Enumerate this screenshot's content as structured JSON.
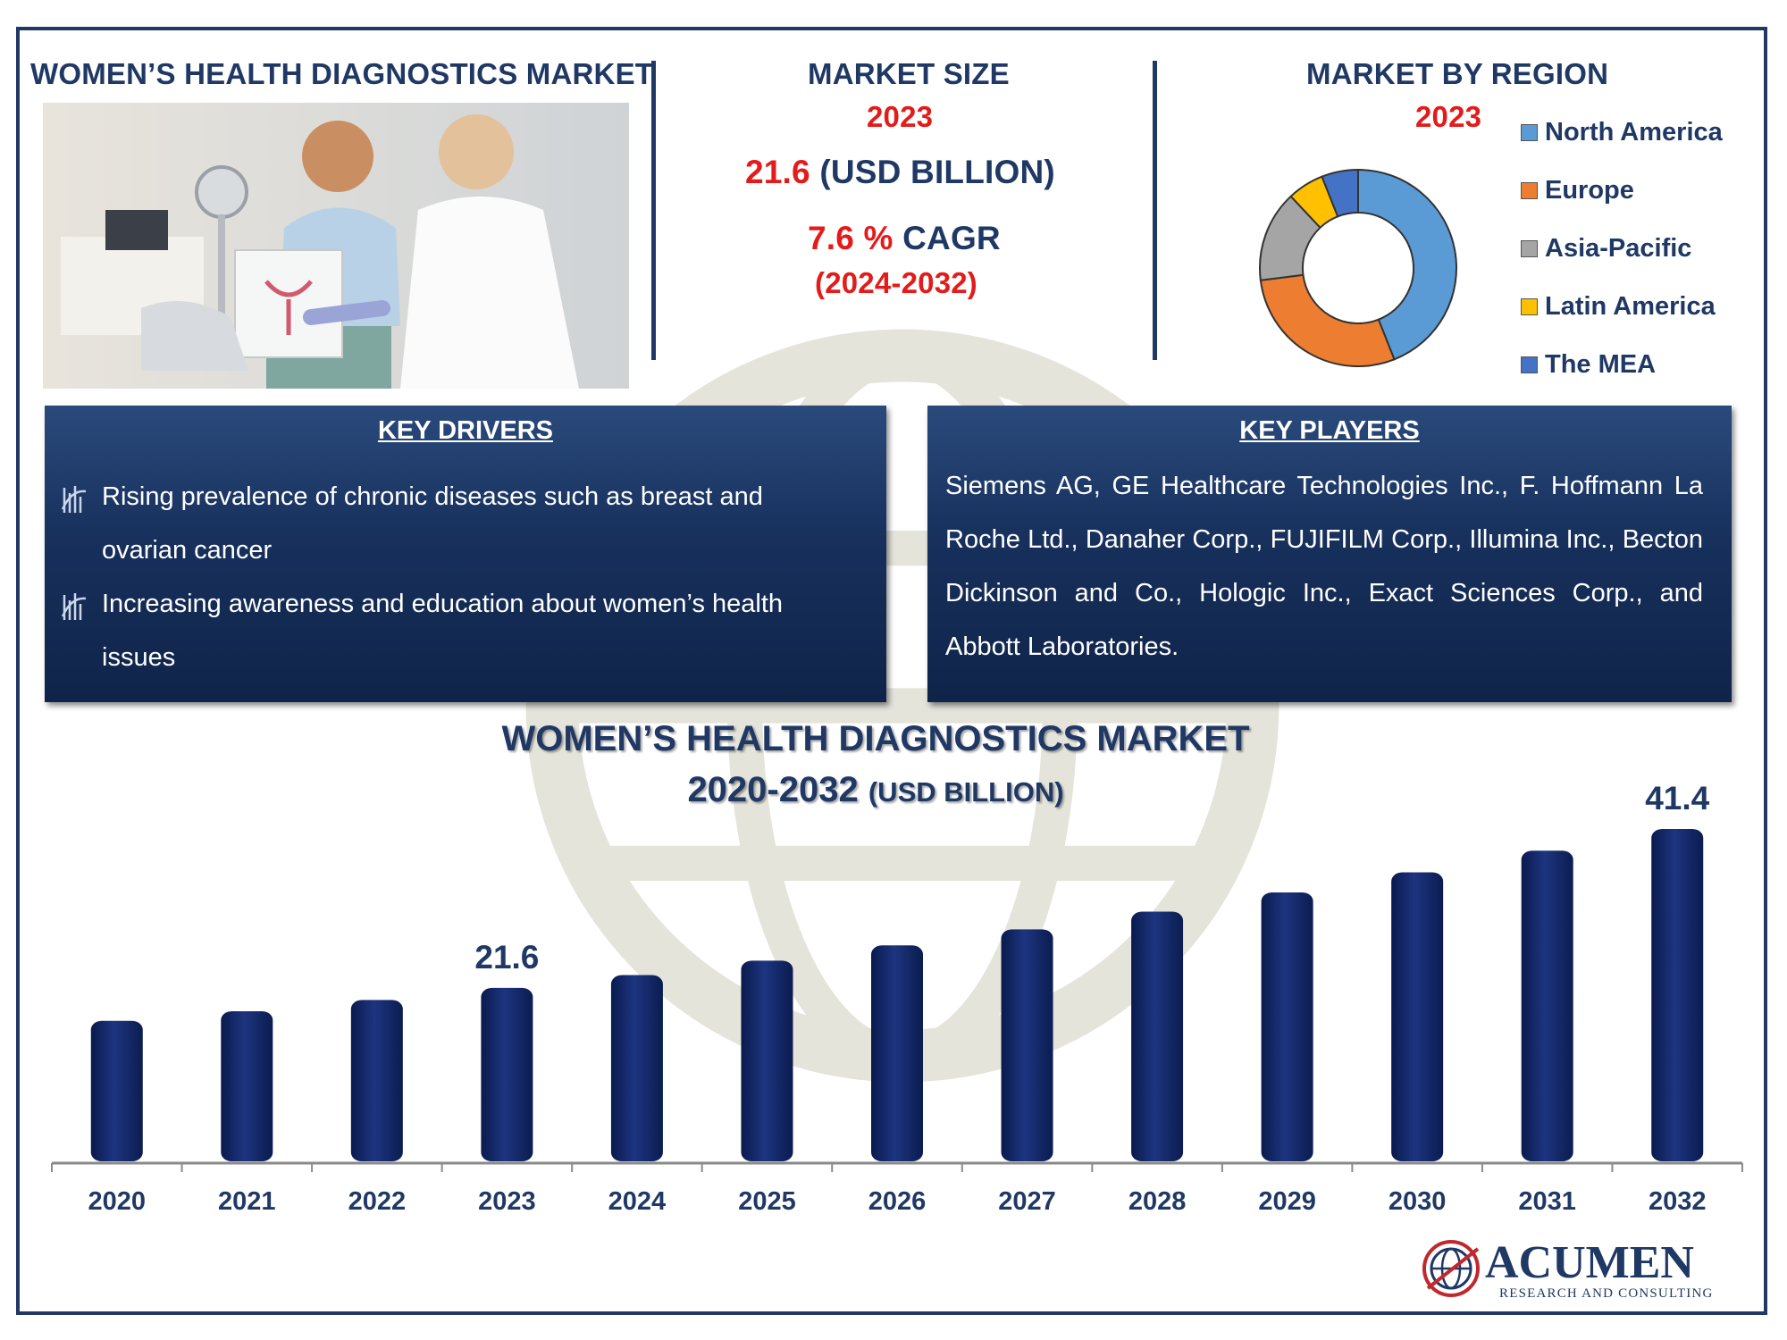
{
  "header": {
    "market_title": "WOMEN’S HEALTH DIAGNOSTICS MARKET",
    "market_size_title": "MARKET SIZE",
    "market_size_year": "2023",
    "market_size_value": "21.6",
    "market_size_unit": "(USD BILLION)",
    "cagr_value": "7.6 %",
    "cagr_label": "CAGR",
    "cagr_period": "(2024-2032)",
    "region_title": "MARKET BY REGION",
    "region_year": "2023"
  },
  "region_legend": [
    {
      "label": "North America",
      "color": "#5b9bd5"
    },
    {
      "label": "Europe",
      "color": "#ed7d31"
    },
    {
      "label": "Asia-Pacific",
      "color": "#a5a5a5"
    },
    {
      "label": "Latin America",
      "color": "#ffc000"
    },
    {
      "label": "The MEA",
      "color": "#4472c4"
    }
  ],
  "drivers": {
    "title": "KEY DRIVERS",
    "items": [
      "Rising prevalence of chronic diseases such as breast and ovarian cancer",
      "Increasing awareness and education about women’s health issues"
    ]
  },
  "players": {
    "title": "KEY PLAYERS",
    "text": "Siemens AG, GE Healthcare Technologies Inc., F. Hoffmann La Roche Ltd., Danaher Corp., FUJIFILM Corp., Illumina Inc., Becton Dickinson and Co., Hologic Inc., Exact Sciences Corp., and Abbott Laboratories."
  },
  "chart_title": {
    "line1": "WOMEN’S HEALTH DIAGNOSTICS MARKET",
    "line2_main": "2020-2032",
    "line2_unit": "(USD BILLION)"
  },
  "logo": {
    "name": "ACUMEN",
    "tagline": "RESEARCH AND CONSULTING"
  },
  "chart_data": [
    {
      "type": "pie",
      "title": "MARKET BY REGION",
      "subtitle": "2023",
      "categories": [
        "North America",
        "Europe",
        "Asia-Pacific",
        "Latin America",
        "The MEA"
      ],
      "values": [
        44,
        29,
        15,
        6,
        6
      ],
      "colors": [
        "#5b9bd5",
        "#ed7d31",
        "#a5a5a5",
        "#ffc000",
        "#4472c4"
      ],
      "legend": "right"
    },
    {
      "type": "bar",
      "title": "WOMEN’S HEALTH DIAGNOSTICS MARKET",
      "subtitle": "2020-2032 (USD BILLION)",
      "categories": [
        "2020",
        "2021",
        "2022",
        "2023",
        "2024",
        "2025",
        "2026",
        "2027",
        "2028",
        "2029",
        "2030",
        "2031",
        "2032"
      ],
      "values": [
        17.5,
        18.7,
        20.1,
        21.6,
        23.2,
        25.0,
        26.9,
        28.9,
        31.1,
        33.5,
        36.0,
        38.7,
        41.4
      ],
      "data_labels": {
        "2023": "21.6",
        "2032": "41.4"
      },
      "ylim": [
        0,
        43
      ],
      "grid": false,
      "color": "#0f2461"
    }
  ]
}
